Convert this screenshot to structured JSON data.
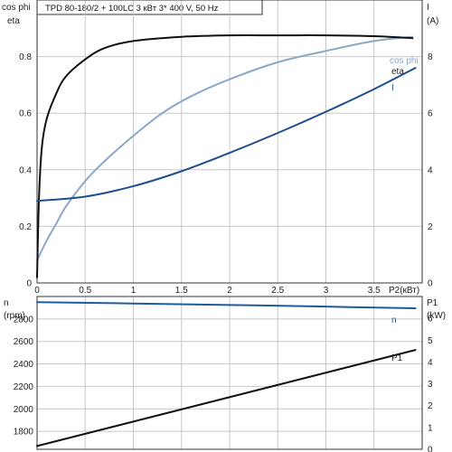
{
  "title": "TPD 80-180/2 + 100LC   3 кВт   3* 400 V, 50 Hz",
  "colors": {
    "cos_phi": "#8aa8c8",
    "eta": "#111111",
    "current": "#1f4e8c",
    "speed": "#1f5a9c",
    "p1": "#111111",
    "grid": "#c8c8c8",
    "frame": "#333333"
  },
  "chart_data": [
    {
      "type": "line",
      "panel": "top",
      "left_axis_labels": [
        "cos phi",
        "eta"
      ],
      "right_axis_label": "I",
      "right_axis_unit": "(A)",
      "x_axis_label": "P2(кВт)",
      "xlim": [
        0,
        4.0
      ],
      "ylim_left": [
        0,
        1.0
      ],
      "ylim_right": [
        0,
        10
      ],
      "xticks": [
        0,
        0.5,
        1,
        1.5,
        2,
        2.5,
        3,
        3.5
      ],
      "xtick_labels": [
        "0",
        "0.5",
        "1",
        "1.5",
        "2",
        "2.5",
        "3",
        "3.5"
      ],
      "yticks_left": [
        0,
        0.2,
        0.4,
        0.6,
        0.8
      ],
      "ytick_labels_left": [
        "0",
        "0.2",
        "0.4",
        "0.6",
        "0.8"
      ],
      "yticks_right": [
        0,
        2,
        4,
        6,
        8
      ],
      "ytick_labels_right": [
        "0",
        "2",
        "4",
        "6",
        "8"
      ],
      "grid": true,
      "series": [
        {
          "name": "cos phi",
          "axis": "left",
          "color": "#8aa8c8",
          "x": [
            0,
            0.1,
            0.2,
            0.3,
            0.5,
            0.7,
            1.0,
            1.3,
            1.6,
            2.0,
            2.5,
            3.0,
            3.5,
            3.9
          ],
          "y": [
            0.08,
            0.15,
            0.21,
            0.27,
            0.36,
            0.43,
            0.52,
            0.6,
            0.66,
            0.72,
            0.78,
            0.82,
            0.855,
            0.87
          ]
        },
        {
          "name": "eta",
          "axis": "left",
          "color": "#111111",
          "x": [
            0,
            0.02,
            0.05,
            0.1,
            0.2,
            0.3,
            0.5,
            0.7,
            1.0,
            1.5,
            2.0,
            2.5,
            3.0,
            3.5,
            3.9
          ],
          "y": [
            0.02,
            0.3,
            0.48,
            0.58,
            0.67,
            0.73,
            0.79,
            0.83,
            0.855,
            0.87,
            0.875,
            0.875,
            0.875,
            0.872,
            0.865
          ]
        },
        {
          "name": "I",
          "axis": "right",
          "color": "#1f4e8c",
          "x": [
            0,
            0.5,
            1.0,
            1.5,
            2.0,
            2.5,
            3.0,
            3.5,
            3.93
          ],
          "y": [
            2.9,
            3.05,
            3.42,
            3.95,
            4.6,
            5.3,
            6.05,
            6.85,
            7.6
          ]
        }
      ]
    },
    {
      "type": "line",
      "panel": "bottom",
      "left_axis_label": "n",
      "left_axis_unit": "(rpm)",
      "right_axis_label": "P1",
      "right_axis_unit": "(kW)",
      "xlim": [
        0,
        4.0
      ],
      "ylim_left": [
        1640,
        3000
      ],
      "ylim_right": [
        0,
        7
      ],
      "yticks_left": [
        1800,
        2000,
        2200,
        2400,
        2600,
        2800
      ],
      "ytick_labels_left": [
        "1800",
        "2000",
        "2200",
        "2400",
        "2600",
        "2800"
      ],
      "yticks_right": [
        0,
        1,
        2,
        3,
        4,
        5,
        6
      ],
      "ytick_labels_right": [
        "0",
        "1",
        "2",
        "3",
        "4",
        "5",
        "6"
      ],
      "grid": true,
      "series": [
        {
          "name": "n",
          "axis": "left",
          "color": "#1f5a9c",
          "x": [
            0,
            1.0,
            2.0,
            3.0,
            3.93
          ],
          "y": [
            2950,
            2938,
            2925,
            2910,
            2895
          ]
        },
        {
          "name": "P1",
          "axis": "right",
          "color": "#111111",
          "x": [
            0,
            3.93
          ],
          "y": [
            0.15,
            4.55
          ]
        }
      ]
    }
  ]
}
